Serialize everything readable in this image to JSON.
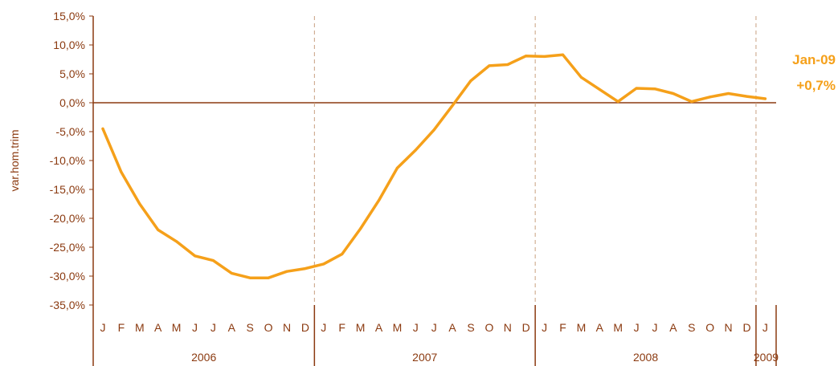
{
  "chart_data": {
    "type": "line",
    "ylabel": "var.hom.trim",
    "ylim": [
      -35,
      15
    ],
    "ytick_values": [
      15,
      10,
      5,
      0,
      -5,
      -10,
      -15,
      -20,
      -25,
      -30,
      -35
    ],
    "ytick_labels": [
      "15,0%",
      "10,0%",
      "5,0%",
      "0,0%",
      "-5,0%",
      "-10,0%",
      "-15,0%",
      "-20,0%",
      "-25,0%",
      "-30,0%",
      "-35,0%"
    ],
    "month_labels": [
      "J",
      "F",
      "M",
      "A",
      "M",
      "J",
      "J",
      "A",
      "S",
      "O",
      "N",
      "D",
      "J",
      "F",
      "M",
      "A",
      "M",
      "J",
      "J",
      "A",
      "S",
      "O",
      "N",
      "D",
      "J",
      "F",
      "M",
      "A",
      "M",
      "J",
      "J",
      "A",
      "S",
      "O",
      "N",
      "D",
      "J"
    ],
    "year_labels": [
      "2006",
      "2007",
      "2008",
      "2009"
    ],
    "grid": false,
    "series": [
      {
        "values": [
          -4.5,
          -12,
          -17.5,
          -22,
          -24,
          -26.5,
          -27.3,
          -29.5,
          -30.3,
          -30.3,
          -29.2,
          -28.7,
          -27.9,
          -26.2,
          -21.8,
          -16.9,
          -11.3,
          -8.2,
          -4.7,
          -0.5,
          3.8,
          6.4,
          6.6,
          8.1,
          8.0,
          8.3,
          4.4,
          2.3,
          0.2,
          2.5,
          2.4,
          1.6,
          0.2,
          1.0,
          1.6,
          1.1,
          0.7
        ]
      }
    ],
    "annotation": {
      "line1": "Jan-09",
      "line2": "+0,7%"
    },
    "colors": {
      "line": "#f5a01a",
      "axis": "#8b3a10",
      "text": "#8b3a10",
      "annotation": "#f5a01a",
      "divider": "#c8a080"
    }
  }
}
